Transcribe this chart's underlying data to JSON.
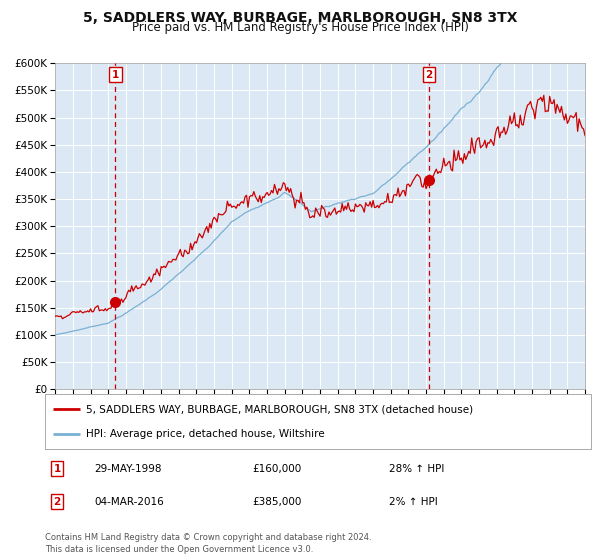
{
  "title": "5, SADDLERS WAY, BURBAGE, MARLBOROUGH, SN8 3TX",
  "subtitle": "Price paid vs. HM Land Registry's House Price Index (HPI)",
  "title_fontsize": 10,
  "subtitle_fontsize": 8.5,
  "background_color": "#dce9f5",
  "fig_bg_color": "#ffffff",
  "red_line_color": "#cc0000",
  "blue_line_color": "#7ab0d4",
  "grid_color": "#ffffff",
  "sale1_date_num": 1998.41,
  "sale1_price": 160000,
  "sale2_date_num": 2016.17,
  "sale2_price": 385000,
  "sale1_label": "1",
  "sale2_label": "2",
  "legend_entry1": "5, SADDLERS WAY, BURBAGE, MARLBOROUGH, SN8 3TX (detached house)",
  "legend_entry2": "HPI: Average price, detached house, Wiltshire",
  "annotation1_date": "29-MAY-1998",
  "annotation1_price": "£160,000",
  "annotation1_hpi": "28% ↑ HPI",
  "annotation2_date": "04-MAR-2016",
  "annotation2_price": "£385,000",
  "annotation2_hpi": "2% ↑ HPI",
  "footer": "Contains HM Land Registry data © Crown copyright and database right 2024.\nThis data is licensed under the Open Government Licence v3.0.",
  "ylim": [
    0,
    600000
  ],
  "yticks": [
    0,
    50000,
    100000,
    150000,
    200000,
    250000,
    300000,
    350000,
    400000,
    450000,
    500000,
    550000,
    600000
  ],
  "xstart": 1995,
  "xend": 2025
}
